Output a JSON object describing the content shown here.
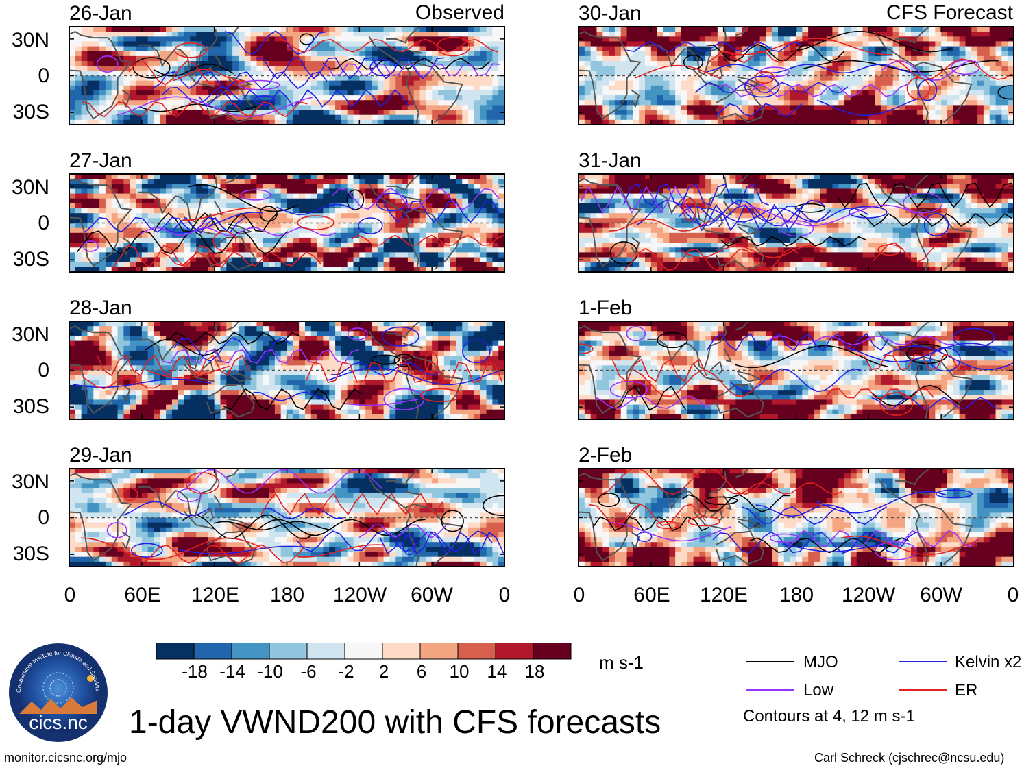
{
  "title": "1-day VWND200 with CFS forecasts",
  "source_url": "monitor.cicsnc.org/mjo",
  "author": "Carl Schreck (cjschrec@ncsu.edu)",
  "logo": {
    "name": "cicsnc-logo",
    "text": "cics.nc",
    "ring_text": "Cooperative Institute for Climate and Satellites"
  },
  "colors": {
    "mjo": "#000000",
    "kelvin": "#1f1fe6",
    "low": "#9933ff",
    "er": "#e61f1f",
    "coast": "#555555"
  },
  "chart_data": {
    "type": "heatmap",
    "variable": "VWND200",
    "units": "m s-1",
    "x_ticks": [
      "0",
      "60E",
      "120E",
      "180",
      "120W",
      "60W",
      "0"
    ],
    "x_values": [
      0,
      60,
      120,
      180,
      240,
      300,
      360
    ],
    "y_ticks": [
      "30N",
      "0",
      "30S"
    ],
    "y_values": [
      30,
      0,
      -30
    ],
    "lon_range": [
      0,
      360
    ],
    "lat_range": [
      -40,
      40
    ],
    "columns": [
      {
        "header": "Observed",
        "panels": [
          "26-Jan",
          "27-Jan",
          "28-Jan",
          "29-Jan"
        ]
      },
      {
        "header": "CFS Forecast",
        "panels": [
          "30-Jan",
          "31-Jan",
          "1-Feb",
          "2-Feb"
        ]
      }
    ],
    "colorbar": {
      "labels": [
        "-18",
        "-14",
        "-10",
        "-6",
        "-2",
        "2",
        "6",
        "10",
        "14",
        "18"
      ],
      "bins": [
        "#053061",
        "#2166ac",
        "#4393c3",
        "#92c5de",
        "#d1e5f0",
        "#f7f7f7",
        "#fddbc7",
        "#f4a582",
        "#d6604d",
        "#b2182b",
        "#67001f"
      ]
    },
    "contours": {
      "note": "Contours at 4, 12 m s-1",
      "levels": [
        4,
        12
      ],
      "legend": [
        {
          "key": "mjo",
          "label": "MJO",
          "color": "#000000"
        },
        {
          "key": "kelvin",
          "label": "Kelvin x2",
          "color": "#1f1fe6"
        },
        {
          "key": "low",
          "label": "Low",
          "color": "#9933ff"
        },
        {
          "key": "er",
          "label": "ER",
          "color": "#e61f1f"
        }
      ]
    }
  }
}
